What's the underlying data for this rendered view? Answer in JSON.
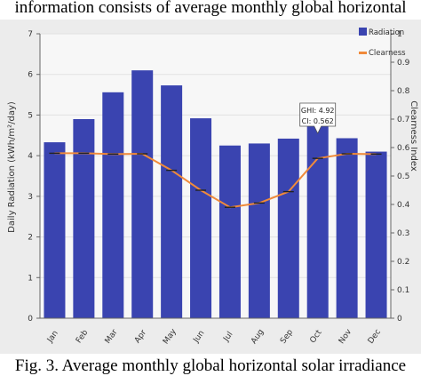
{
  "header": {
    "text": "information consists of average monthly global horizontal"
  },
  "caption": {
    "text": "Fig. 3. Average monthly global horizontal solar irradiance"
  },
  "chart_data": {
    "type": "bar",
    "categories": [
      "Jan",
      "Feb",
      "Mar",
      "Apr",
      "May",
      "Jun",
      "Jul",
      "Aug",
      "Sep",
      "Oct",
      "Nov",
      "Dec"
    ],
    "series": [
      {
        "name": "Radiation",
        "type": "bar",
        "axis": "left",
        "color": "#3a44b0",
        "values": [
          4.33,
          4.9,
          5.56,
          6.1,
          5.73,
          4.92,
          4.25,
          4.3,
          4.42,
          4.92,
          4.43,
          4.1
        ]
      },
      {
        "name": "Clearness",
        "type": "line",
        "axis": "right",
        "color": "#f08a3a",
        "values": [
          0.58,
          0.58,
          0.577,
          0.578,
          0.52,
          0.45,
          0.39,
          0.405,
          0.445,
          0.562,
          0.578,
          0.577
        ]
      }
    ],
    "ylabel": "Daily Radiation (kWh/m²/day)",
    "y2label": "Clearness Index",
    "ylim": [
      0,
      7
    ],
    "y2lim": [
      0,
      1
    ],
    "yticks": [
      "0",
      "1",
      "2",
      "3",
      "4",
      "5",
      "6",
      "7"
    ],
    "y2ticks": [
      "0",
      "0.1",
      "0.2",
      "0.3",
      "0.4",
      "0.5",
      "0.6",
      "0.7",
      "0.8",
      "0.9",
      "1"
    ],
    "legend_position": "top-right",
    "tooltip": {
      "month": "Oct",
      "line1": "GHI: 4.92",
      "line2": "CI: 0.562"
    }
  }
}
